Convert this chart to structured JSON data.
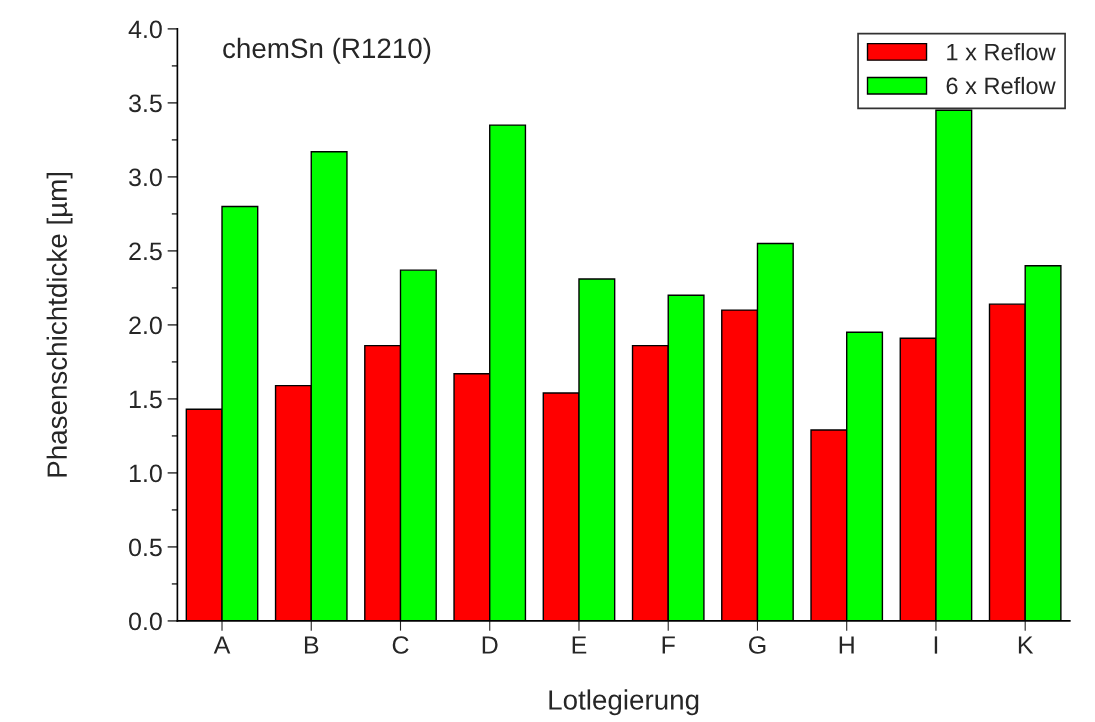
{
  "chart_data": {
    "type": "bar",
    "title": "chemSn (R1210)",
    "xlabel": "Lotlegierung",
    "ylabel": "Phasenschichtdicke [µm]",
    "categories": [
      "A",
      "B",
      "C",
      "D",
      "E",
      "F",
      "G",
      "H",
      "I",
      "K"
    ],
    "series": [
      {
        "name": "1 x Reflow",
        "color": "#ff0000",
        "values": [
          1.43,
          1.59,
          1.86,
          1.67,
          1.54,
          1.86,
          2.1,
          1.29,
          1.91,
          2.14
        ]
      },
      {
        "name": "6 x Reflow",
        "color": "#00ff00",
        "values": [
          2.8,
          3.17,
          2.37,
          3.35,
          2.31,
          2.2,
          2.55,
          1.95,
          3.45,
          2.4
        ]
      }
    ],
    "ylim": [
      0,
      4
    ],
    "yticks": [
      {
        "value": 0,
        "label": "0.0"
      },
      {
        "value": 0.25,
        "label": null
      },
      {
        "value": 0.5,
        "label": "0.5"
      },
      {
        "value": 0.75,
        "label": null
      },
      {
        "value": 1,
        "label": "1.0"
      },
      {
        "value": 1.25,
        "label": null
      },
      {
        "value": 1.5,
        "label": "1.5"
      },
      {
        "value": 1.75,
        "label": null
      },
      {
        "value": 2,
        "label": "2.0"
      },
      {
        "value": 2.25,
        "label": null
      },
      {
        "value": 2.5,
        "label": "2.5"
      },
      {
        "value": 2.75,
        "label": null
      },
      {
        "value": 3,
        "label": "3.0"
      },
      {
        "value": 3.25,
        "label": null
      },
      {
        "value": 3.5,
        "label": "3.5"
      },
      {
        "value": 3.75,
        "label": null
      },
      {
        "value": 4,
        "label": "4.0"
      }
    ],
    "legend": "top right",
    "grid": false
  }
}
